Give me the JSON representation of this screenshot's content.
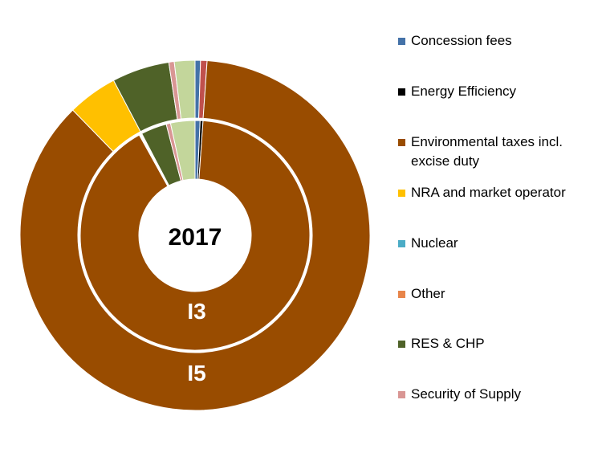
{
  "chart_data": {
    "type": "donut",
    "title": "2017",
    "legend_position": "right",
    "legend": [
      {
        "name": "Concession fees",
        "color": "#4472A8"
      },
      {
        "name": "Energy Efficiency",
        "color": "#000000"
      },
      {
        "name": "Environmental taxes incl. excise duty",
        "color": "#994C00"
      },
      {
        "name": "NRA and market operator",
        "color": "#FFC000"
      },
      {
        "name": "Nuclear",
        "color": "#4BACC6"
      },
      {
        "name": "Other",
        "color": "#E8854A"
      },
      {
        "name": "RES & CHP",
        "color": "#4F6228"
      },
      {
        "name": "Security of Supply",
        "color": "#D99694"
      }
    ],
    "rings": [
      {
        "label": "I3",
        "values_percent": [
          {
            "name": "Concession fees",
            "value": 0.7,
            "color": "#4472A8"
          },
          {
            "name": "Energy Efficiency",
            "value": 0.4,
            "color": "#000000"
          },
          {
            "name": "Environmental taxes incl. excise duty",
            "value": 89.9,
            "color": "#994C00"
          },
          {
            "name": "NRA and market operator",
            "value": 0.0,
            "color": "#FFC000"
          },
          {
            "name": "Nuclear",
            "value": 0.0,
            "color": "#4BACC6"
          },
          {
            "name": "Other",
            "value": 0.4,
            "color": "#FFFFFF"
          },
          {
            "name": "RES & CHP",
            "value": 3.6,
            "color": "#4F6228"
          },
          {
            "name": "Security of Supply",
            "value": 0.6,
            "color": "#D99694"
          },
          {
            "name": "",
            "value": 3.4,
            "color": "#C3D69B"
          }
        ]
      },
      {
        "label": "I5",
        "values_percent": [
          {
            "name": "Concession fees",
            "value": 0.5,
            "color": "#4472A8"
          },
          {
            "name": "",
            "value": 0.6,
            "color": "#C0504D"
          },
          {
            "name": "Energy Efficiency",
            "value": 0.0,
            "color": "#000000"
          },
          {
            "name": "Environmental taxes incl. excise duty",
            "value": 86.5,
            "color": "#994C00"
          },
          {
            "name": "NRA and market operator",
            "value": 4.6,
            "color": "#FFC000"
          },
          {
            "name": "Nuclear",
            "value": 0.0,
            "color": "#4BACC6"
          },
          {
            "name": "Other",
            "value": 0.0,
            "color": "#E8854A"
          },
          {
            "name": "RES & CHP",
            "value": 5.3,
            "color": "#4F6228"
          },
          {
            "name": "Security of Supply",
            "value": 0.5,
            "color": "#D99694"
          },
          {
            "name": "",
            "value": 1.9,
            "color": "#C3D69B"
          }
        ]
      }
    ]
  }
}
